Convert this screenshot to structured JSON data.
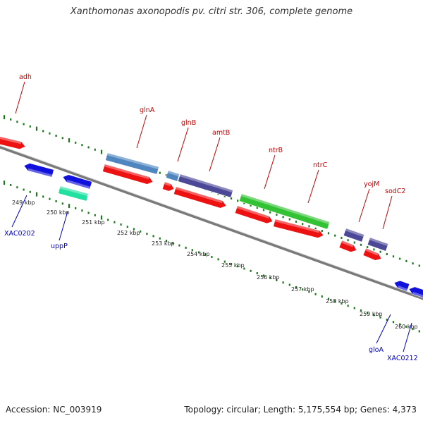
{
  "title": "Xanthomonas axonopodis pv. citri str. 306, complete genome",
  "footer": {
    "accession": "Accession: NC_003919",
    "summary": "Topology: circular; Length: 5,175,554 bp; Genes: 4,373"
  },
  "colors": {
    "forward_label": "#cc0000",
    "reverse_label": "#0000cc",
    "tick": "#1a7a1a",
    "backbone": "#7a7a7a"
  },
  "ruler": {
    "labels": [
      "249 kbp",
      "250 kbp",
      "251 kbp",
      "252 kbp",
      "253 kbp",
      "254 kbp",
      "255 kbp",
      "256 kbp",
      "257 kbp",
      "258 kbp",
      "259 kbp",
      "260 kbp"
    ]
  },
  "forward_genes": [
    {
      "name": "adh",
      "label_color": "#cc0000"
    },
    {
      "name": "glnA",
      "label_color": "#cc0000"
    },
    {
      "name": "glnB",
      "label_color": "#cc0000"
    },
    {
      "name": "amtB",
      "label_color": "#cc0000"
    },
    {
      "name": "ntrB",
      "label_color": "#cc0000"
    },
    {
      "name": "ntrC",
      "label_color": "#cc0000"
    },
    {
      "name": "yojM",
      "label_color": "#cc0000"
    },
    {
      "name": "sodC2",
      "label_color": "#cc0000"
    }
  ],
  "reverse_genes": [
    {
      "name": "XAC0202",
      "label_color": "#0000cc"
    },
    {
      "name": "uppP",
      "label_color": "#0000cc"
    },
    {
      "name": "gloA",
      "label_color": "#0000cc"
    },
    {
      "name": "XAC0212",
      "label_color": "#0000cc"
    }
  ]
}
